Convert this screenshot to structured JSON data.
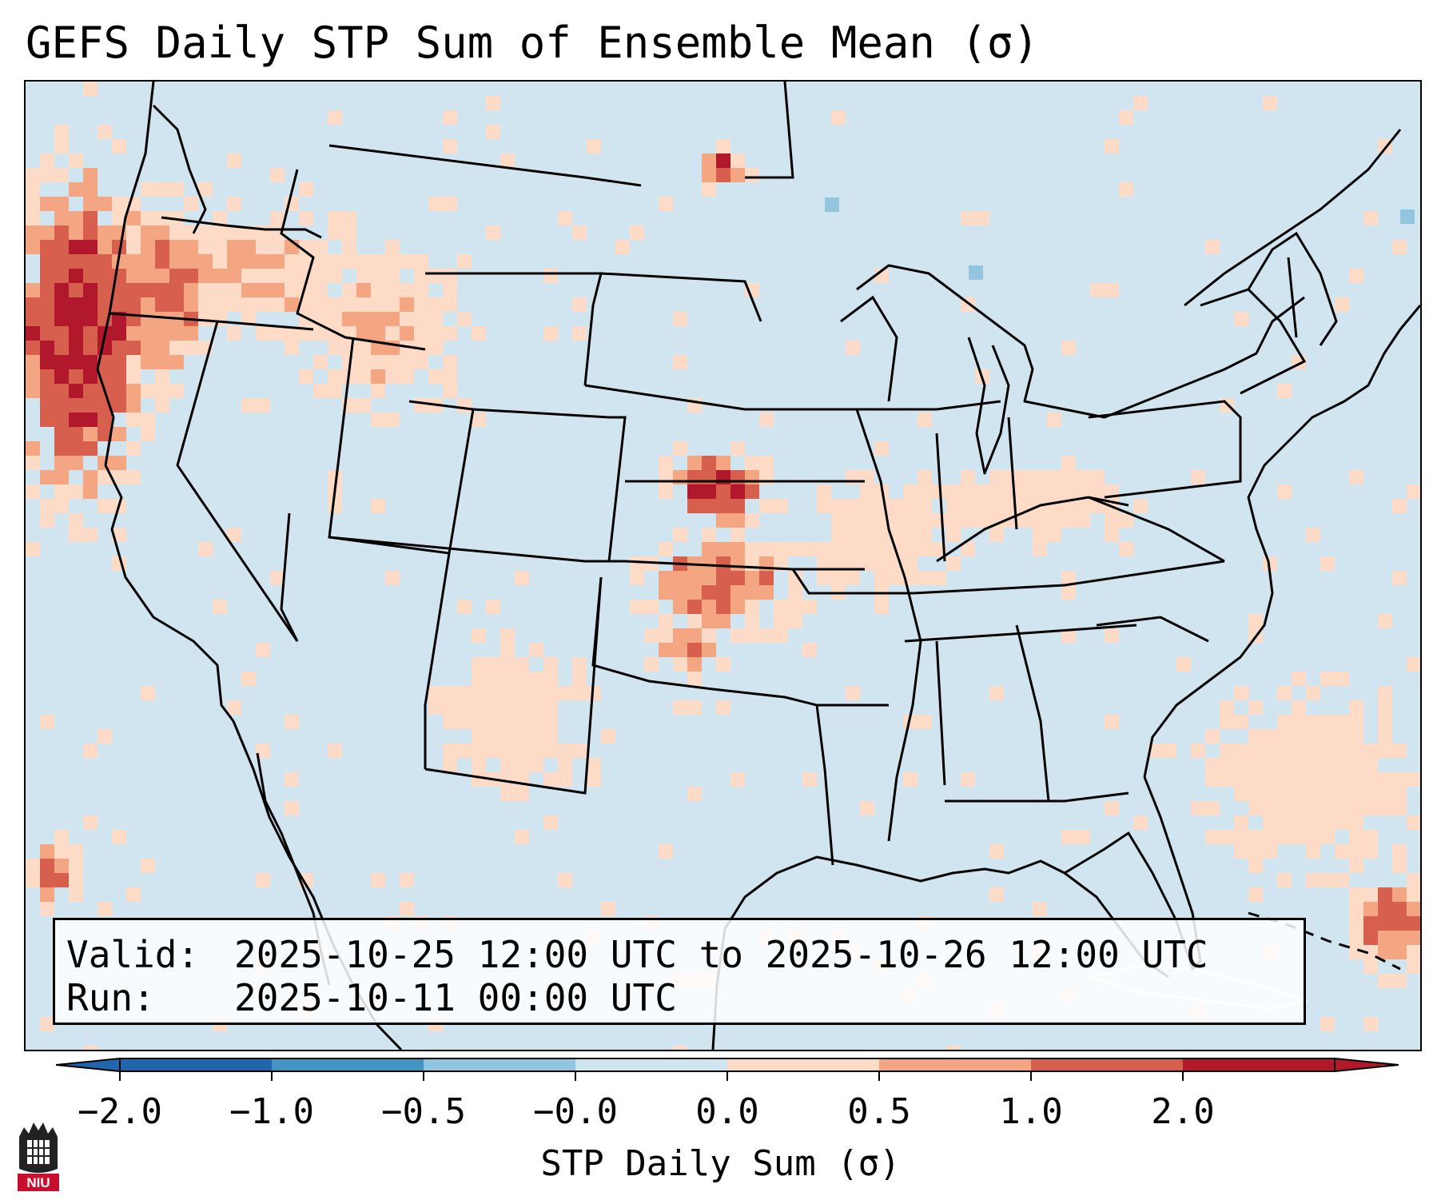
{
  "title": "GEFS Daily STP Sum of Ensemble Mean (σ)",
  "info": {
    "valid_label": "Valid:",
    "valid_value": "2025-10-25 12:00 UTC to 2025-10-26 12:00 UTC",
    "run_label": "Run:",
    "run_value": "2025-10-11 00:00 UTC"
  },
  "colorbar": {
    "label": "STP Daily Sum (σ)",
    "ticks": [
      "−2.0",
      "−1.0",
      "−0.5",
      "−0.0",
      "0.0",
      "0.5",
      "1.0",
      "2.0"
    ],
    "colors": [
      "#2166ac",
      "#4393c3",
      "#92c5de",
      "#d1e5f0",
      "#fddbc7",
      "#f4a582",
      "#d6604d",
      "#b2182b"
    ],
    "neutral_color": "#d1e5f0"
  },
  "logo": {
    "text": "NIU"
  },
  "map": {
    "region": "Continental United States",
    "background_color": "#d1e5f0",
    "hotspots": [
      {
        "name": "pacific-northwest",
        "level": 2.0
      },
      {
        "name": "northern-rockies",
        "level": 1.0
      },
      {
        "name": "southern-plains-kansas-oklahoma",
        "level": 2.0
      },
      {
        "name": "north-dakota",
        "level": 2.0
      },
      {
        "name": "bahamas-caribbean",
        "level": 2.0
      },
      {
        "name": "gulf-of-mexico",
        "level": 0.5
      }
    ]
  }
}
